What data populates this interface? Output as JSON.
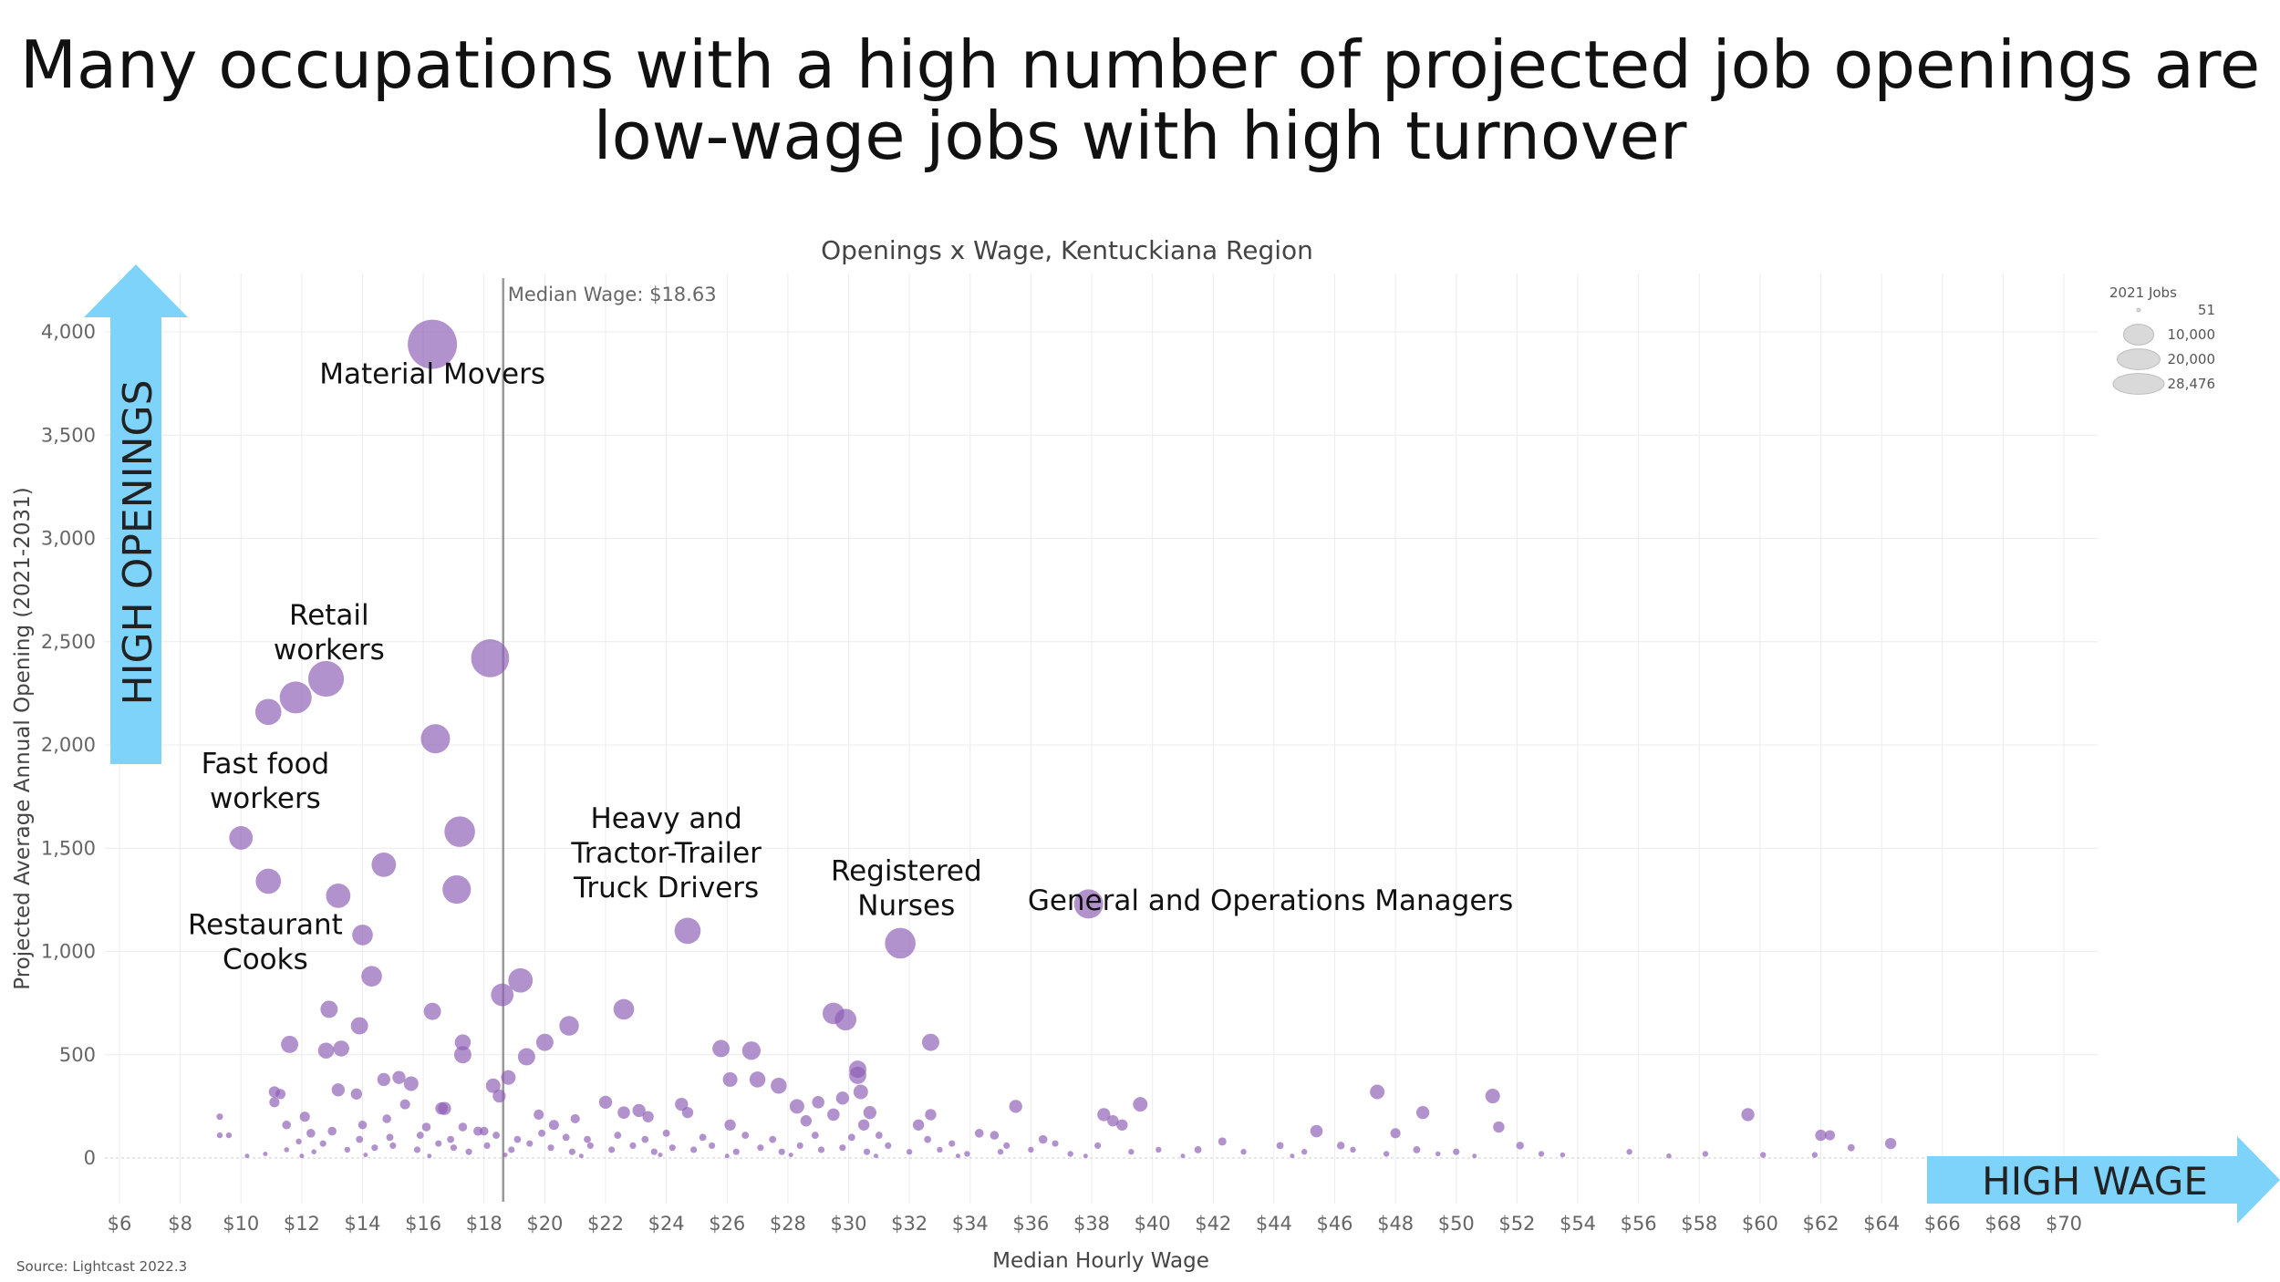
{
  "title_lines": [
    "Many occupations with a high number of projected job openings are",
    "low-wage jobs with high turnover"
  ],
  "source": "Source: Lightcast 2022.3",
  "arrows": {
    "y_label": "HIGH OPENINGS",
    "x_label": "HIGH WAGE",
    "color": "#7ed3fb"
  },
  "colors": {
    "point": "#8e5fb5",
    "median_line": "#999999",
    "grid": "#ececec",
    "legend_circle": "#d9d9d9"
  },
  "legend": {
    "title": "2021 Jobs",
    "entries": [
      {
        "label": "51",
        "value": 51
      },
      {
        "label": "10,000",
        "value": 10000
      },
      {
        "label": "20,000",
        "value": 20000
      },
      {
        "label": "28,476",
        "value": 28476
      }
    ]
  },
  "chart_data": {
    "type": "scatter",
    "title": "Openings x Wage, Kentuckiana Region",
    "xlabel": "Median Hourly Wage",
    "ylabel": "Projected Average Annual Opening (2021-2031)",
    "xlim": [
      6,
      70
    ],
    "ylim": [
      -150,
      4200
    ],
    "x_ticks": [
      6,
      8,
      10,
      12,
      14,
      16,
      18,
      20,
      22,
      24,
      26,
      28,
      30,
      32,
      34,
      36,
      38,
      40,
      42,
      44,
      46,
      48,
      50,
      52,
      54,
      56,
      58,
      60,
      62,
      64,
      66,
      68,
      70
    ],
    "x_tick_labels": [
      "$6",
      "$8",
      "$10",
      "$12",
      "$14",
      "$16",
      "$18",
      "$20",
      "$22",
      "$24",
      "$26",
      "$28",
      "$30",
      "$32",
      "$34",
      "$36",
      "$38",
      "$40",
      "$42",
      "$44",
      "$46",
      "$48",
      "$50",
      "$52",
      "$54",
      "$56",
      "$58",
      "$60",
      "$62",
      "$64",
      "$66",
      "$68",
      "$70"
    ],
    "y_ticks": [
      0,
      500,
      1000,
      1500,
      2000,
      2500,
      3000,
      3500,
      4000
    ],
    "y_tick_labels": [
      "0",
      "500",
      "1,000",
      "1,500",
      "2,000",
      "2,500",
      "3,000",
      "3,500",
      "4,000"
    ],
    "size_legend": "2021 Jobs",
    "median_wage": {
      "value": 18.63,
      "label": "Median Wage: $18.63"
    },
    "grid": true,
    "legend_position": "top-right",
    "annotations": [
      {
        "lines": [
          "Material Movers"
        ],
        "x": 16.3,
        "y": 3750
      },
      {
        "lines": [
          "Retail",
          "workers"
        ],
        "x": 12.9,
        "y": 2500
      },
      {
        "lines": [
          "Fast food",
          "workers"
        ],
        "x": 10.8,
        "y": 1780
      },
      {
        "lines": [
          "Restaurant",
          "Cooks"
        ],
        "x": 10.8,
        "y": 1000
      },
      {
        "lines": [
          "Heavy and",
          "Tractor-Trailer",
          "Truck Drivers"
        ],
        "x": 24.0,
        "y": 1430
      },
      {
        "lines": [
          "Registered",
          "Nurses"
        ],
        "x": 31.9,
        "y": 1260
      },
      {
        "lines": [
          "General and Operations Managers"
        ],
        "x": 47.0,
        "y": 1200
      }
    ],
    "points": [
      {
        "x": 16.3,
        "y": 3940,
        "size": 28476
      },
      {
        "x": 18.2,
        "y": 2420,
        "size": 17000
      },
      {
        "x": 12.8,
        "y": 2320,
        "size": 15000
      },
      {
        "x": 11.8,
        "y": 2230,
        "size": 12000
      },
      {
        "x": 10.9,
        "y": 2160,
        "size": 8000
      },
      {
        "x": 16.4,
        "y": 2030,
        "size": 10000
      },
      {
        "x": 10.0,
        "y": 1550,
        "size": 6500
      },
      {
        "x": 17.2,
        "y": 1580,
        "size": 11000
      },
      {
        "x": 10.9,
        "y": 1340,
        "size": 7500
      },
      {
        "x": 17.1,
        "y": 1300,
        "size": 9500
      },
      {
        "x": 13.2,
        "y": 1270,
        "size": 7000
      },
      {
        "x": 14.7,
        "y": 1420,
        "size": 7000
      },
      {
        "x": 14.0,
        "y": 1080,
        "size": 5000
      },
      {
        "x": 14.3,
        "y": 880,
        "size": 5000
      },
      {
        "x": 24.7,
        "y": 1100,
        "size": 8000
      },
      {
        "x": 31.7,
        "y": 1040,
        "size": 11000
      },
      {
        "x": 37.9,
        "y": 1230,
        "size": 10000
      },
      {
        "x": 19.2,
        "y": 860,
        "size": 7000
      },
      {
        "x": 18.6,
        "y": 790,
        "size": 6000
      },
      {
        "x": 12.9,
        "y": 720,
        "size": 3500
      },
      {
        "x": 16.3,
        "y": 710,
        "size": 3500
      },
      {
        "x": 22.6,
        "y": 720,
        "size": 5000
      },
      {
        "x": 20.8,
        "y": 640,
        "size": 4500
      },
      {
        "x": 29.5,
        "y": 700,
        "size": 5500
      },
      {
        "x": 29.9,
        "y": 670,
        "size": 5500
      },
      {
        "x": 13.9,
        "y": 640,
        "size": 3500
      },
      {
        "x": 11.6,
        "y": 550,
        "size": 3500
      },
      {
        "x": 12.8,
        "y": 520,
        "size": 3000
      },
      {
        "x": 13.3,
        "y": 530,
        "size": 3000
      },
      {
        "x": 17.3,
        "y": 560,
        "size": 3000
      },
      {
        "x": 17.3,
        "y": 500,
        "size": 3500
      },
      {
        "x": 20.0,
        "y": 560,
        "size": 3500
      },
      {
        "x": 19.4,
        "y": 490,
        "size": 3500
      },
      {
        "x": 25.8,
        "y": 530,
        "size": 3500
      },
      {
        "x": 26.8,
        "y": 520,
        "size": 4000
      },
      {
        "x": 32.7,
        "y": 560,
        "size": 3500
      },
      {
        "x": 30.3,
        "y": 430,
        "size": 3500
      },
      {
        "x": 30.3,
        "y": 400,
        "size": 3500
      },
      {
        "x": 18.8,
        "y": 390,
        "size": 2500
      },
      {
        "x": 18.3,
        "y": 350,
        "size": 2500
      },
      {
        "x": 15.6,
        "y": 360,
        "size": 2500
      },
      {
        "x": 15.2,
        "y": 390,
        "size": 2000
      },
      {
        "x": 14.7,
        "y": 380,
        "size": 2000
      },
      {
        "x": 26.1,
        "y": 380,
        "size": 2500
      },
      {
        "x": 27.0,
        "y": 380,
        "size": 3000
      },
      {
        "x": 27.7,
        "y": 350,
        "size": 3000
      },
      {
        "x": 30.4,
        "y": 320,
        "size": 2500
      },
      {
        "x": 29.8,
        "y": 290,
        "size": 2000
      },
      {
        "x": 28.3,
        "y": 250,
        "size": 2500
      },
      {
        "x": 13.2,
        "y": 330,
        "size": 2000
      },
      {
        "x": 13.8,
        "y": 310,
        "size": 1500
      },
      {
        "x": 11.1,
        "y": 320,
        "size": 1500
      },
      {
        "x": 11.3,
        "y": 310,
        "size": 1200
      },
      {
        "x": 11.1,
        "y": 270,
        "size": 1200
      },
      {
        "x": 18.5,
        "y": 300,
        "size": 2000
      },
      {
        "x": 22.0,
        "y": 270,
        "size": 2000
      },
      {
        "x": 22.6,
        "y": 220,
        "size": 1800
      },
      {
        "x": 23.1,
        "y": 230,
        "size": 2000
      },
      {
        "x": 24.5,
        "y": 260,
        "size": 2000
      },
      {
        "x": 23.4,
        "y": 200,
        "size": 1500
      },
      {
        "x": 24.7,
        "y": 220,
        "size": 1500
      },
      {
        "x": 26.1,
        "y": 160,
        "size": 1500
      },
      {
        "x": 28.6,
        "y": 180,
        "size": 1500
      },
      {
        "x": 29.0,
        "y": 270,
        "size": 1800
      },
      {
        "x": 29.5,
        "y": 210,
        "size": 1800
      },
      {
        "x": 30.7,
        "y": 220,
        "size": 2000
      },
      {
        "x": 30.5,
        "y": 160,
        "size": 1500
      },
      {
        "x": 32.3,
        "y": 160,
        "size": 1500
      },
      {
        "x": 32.7,
        "y": 210,
        "size": 1500
      },
      {
        "x": 35.5,
        "y": 250,
        "size": 2000
      },
      {
        "x": 38.4,
        "y": 210,
        "size": 2000
      },
      {
        "x": 38.7,
        "y": 180,
        "size": 1500
      },
      {
        "x": 39.6,
        "y": 260,
        "size": 2500
      },
      {
        "x": 39.0,
        "y": 160,
        "size": 1500
      },
      {
        "x": 47.4,
        "y": 320,
        "size": 2500
      },
      {
        "x": 48.9,
        "y": 220,
        "size": 2000
      },
      {
        "x": 51.2,
        "y": 300,
        "size": 2500
      },
      {
        "x": 59.6,
        "y": 210,
        "size": 2000
      },
      {
        "x": 45.4,
        "y": 130,
        "size": 1800
      },
      {
        "x": 51.4,
        "y": 150,
        "size": 1500
      },
      {
        "x": 62.0,
        "y": 110,
        "size": 1500
      },
      {
        "x": 64.3,
        "y": 70,
        "size": 1500
      },
      {
        "x": 48.0,
        "y": 120,
        "size": 1200
      },
      {
        "x": 16.7,
        "y": 240,
        "size": 2000
      },
      {
        "x": 16.6,
        "y": 240,
        "size": 1800
      },
      {
        "x": 12.1,
        "y": 200,
        "size": 1200
      },
      {
        "x": 15.4,
        "y": 260,
        "size": 1200
      },
      {
        "x": 19.8,
        "y": 210,
        "size": 1200
      },
      {
        "x": 20.3,
        "y": 160,
        "size": 1200
      },
      {
        "x": 21.0,
        "y": 190,
        "size": 1000
      },
      {
        "x": 17.8,
        "y": 130,
        "size": 1000
      },
      {
        "x": 18.0,
        "y": 130,
        "size": 900
      },
      {
        "x": 17.3,
        "y": 150,
        "size": 900
      },
      {
        "x": 16.1,
        "y": 150,
        "size": 900
      },
      {
        "x": 14.0,
        "y": 160,
        "size": 900
      },
      {
        "x": 14.8,
        "y": 190,
        "size": 900
      },
      {
        "x": 11.5,
        "y": 160,
        "size": 900
      },
      {
        "x": 12.3,
        "y": 120,
        "size": 900
      },
      {
        "x": 13.0,
        "y": 130,
        "size": 900
      },
      {
        "x": 9.3,
        "y": 200,
        "size": 500
      },
      {
        "x": 9.3,
        "y": 110,
        "size": 400
      },
      {
        "x": 9.6,
        "y": 110,
        "size": 400
      },
      {
        "x": 34.8,
        "y": 110,
        "size": 900
      },
      {
        "x": 36.4,
        "y": 90,
        "size": 900
      },
      {
        "x": 34.3,
        "y": 120,
        "size": 900
      },
      {
        "x": 42.3,
        "y": 80,
        "size": 800
      },
      {
        "x": 41.5,
        "y": 40,
        "size": 600
      },
      {
        "x": 44.2,
        "y": 60,
        "size": 600
      },
      {
        "x": 46.2,
        "y": 60,
        "size": 700
      },
      {
        "x": 48.7,
        "y": 40,
        "size": 600
      },
      {
        "x": 50.0,
        "y": 30,
        "size": 500
      },
      {
        "x": 52.1,
        "y": 60,
        "size": 700
      },
      {
        "x": 52.8,
        "y": 20,
        "size": 400
      },
      {
        "x": 55.7,
        "y": 30,
        "size": 400
      },
      {
        "x": 58.2,
        "y": 20,
        "size": 400
      },
      {
        "x": 60.1,
        "y": 15,
        "size": 400
      },
      {
        "x": 61.8,
        "y": 15,
        "size": 400
      },
      {
        "x": 62.3,
        "y": 110,
        "size": 1200
      },
      {
        "x": 63.0,
        "y": 50,
        "size": 600
      },
      {
        "x": 53.5,
        "y": 15,
        "size": 300
      },
      {
        "x": 57.0,
        "y": 10,
        "size": 300
      },
      {
        "x": 10.8,
        "y": 20,
        "size": 200
      },
      {
        "x": 11.5,
        "y": 40,
        "size": 300
      },
      {
        "x": 12.4,
        "y": 30,
        "size": 300
      },
      {
        "x": 13.5,
        "y": 40,
        "size": 400
      },
      {
        "x": 14.4,
        "y": 50,
        "size": 500
      },
      {
        "x": 15.0,
        "y": 60,
        "size": 500
      },
      {
        "x": 15.8,
        "y": 40,
        "size": 500
      },
      {
        "x": 16.5,
        "y": 70,
        "size": 500
      },
      {
        "x": 17.0,
        "y": 50,
        "size": 500
      },
      {
        "x": 17.5,
        "y": 30,
        "size": 500
      },
      {
        "x": 18.1,
        "y": 60,
        "size": 500
      },
      {
        "x": 18.9,
        "y": 40,
        "size": 500
      },
      {
        "x": 19.5,
        "y": 70,
        "size": 500
      },
      {
        "x": 20.2,
        "y": 50,
        "size": 500
      },
      {
        "x": 20.9,
        "y": 30,
        "size": 500
      },
      {
        "x": 21.5,
        "y": 60,
        "size": 500
      },
      {
        "x": 22.2,
        "y": 40,
        "size": 500
      },
      {
        "x": 22.9,
        "y": 60,
        "size": 500
      },
      {
        "x": 23.6,
        "y": 30,
        "size": 500
      },
      {
        "x": 24.2,
        "y": 50,
        "size": 500
      },
      {
        "x": 24.9,
        "y": 40,
        "size": 500
      },
      {
        "x": 25.5,
        "y": 60,
        "size": 500
      },
      {
        "x": 26.3,
        "y": 30,
        "size": 500
      },
      {
        "x": 27.1,
        "y": 50,
        "size": 500
      },
      {
        "x": 27.8,
        "y": 30,
        "size": 500
      },
      {
        "x": 28.4,
        "y": 60,
        "size": 500
      },
      {
        "x": 29.1,
        "y": 40,
        "size": 500
      },
      {
        "x": 29.8,
        "y": 50,
        "size": 500
      },
      {
        "x": 30.6,
        "y": 30,
        "size": 500
      },
      {
        "x": 31.3,
        "y": 60,
        "size": 500
      },
      {
        "x": 32.0,
        "y": 30,
        "size": 400
      },
      {
        "x": 33.0,
        "y": 40,
        "size": 400
      },
      {
        "x": 33.9,
        "y": 20,
        "size": 400
      },
      {
        "x": 35.0,
        "y": 30,
        "size": 400
      },
      {
        "x": 36.0,
        "y": 40,
        "size": 400
      },
      {
        "x": 37.3,
        "y": 20,
        "size": 400
      },
      {
        "x": 38.2,
        "y": 60,
        "size": 500
      },
      {
        "x": 39.3,
        "y": 30,
        "size": 400
      },
      {
        "x": 40.2,
        "y": 40,
        "size": 400
      },
      {
        "x": 43.0,
        "y": 30,
        "size": 400
      },
      {
        "x": 45.0,
        "y": 30,
        "size": 400
      },
      {
        "x": 46.6,
        "y": 40,
        "size": 400
      },
      {
        "x": 47.7,
        "y": 20,
        "size": 400
      },
      {
        "x": 49.4,
        "y": 20,
        "size": 300
      },
      {
        "x": 10.2,
        "y": 10,
        "size": 150
      },
      {
        "x": 11.9,
        "y": 80,
        "size": 400
      },
      {
        "x": 12.7,
        "y": 70,
        "size": 500
      },
      {
        "x": 13.9,
        "y": 90,
        "size": 600
      },
      {
        "x": 14.9,
        "y": 100,
        "size": 600
      },
      {
        "x": 15.9,
        "y": 110,
        "size": 600
      },
      {
        "x": 16.9,
        "y": 90,
        "size": 600
      },
      {
        "x": 18.4,
        "y": 110,
        "size": 600
      },
      {
        "x": 19.1,
        "y": 90,
        "size": 600
      },
      {
        "x": 19.9,
        "y": 120,
        "size": 600
      },
      {
        "x": 20.7,
        "y": 100,
        "size": 600
      },
      {
        "x": 21.4,
        "y": 90,
        "size": 600
      },
      {
        "x": 22.4,
        "y": 110,
        "size": 600
      },
      {
        "x": 23.3,
        "y": 90,
        "size": 600
      },
      {
        "x": 24.0,
        "y": 120,
        "size": 600
      },
      {
        "x": 25.2,
        "y": 100,
        "size": 600
      },
      {
        "x": 26.6,
        "y": 110,
        "size": 600
      },
      {
        "x": 27.5,
        "y": 90,
        "size": 600
      },
      {
        "x": 28.9,
        "y": 110,
        "size": 600
      },
      {
        "x": 30.1,
        "y": 100,
        "size": 600
      },
      {
        "x": 31.0,
        "y": 110,
        "size": 600
      },
      {
        "x": 32.6,
        "y": 90,
        "size": 600
      },
      {
        "x": 33.4,
        "y": 70,
        "size": 500
      },
      {
        "x": 35.2,
        "y": 60,
        "size": 500
      },
      {
        "x": 36.8,
        "y": 70,
        "size": 500
      },
      {
        "x": 12.0,
        "y": 10,
        "size": 200
      },
      {
        "x": 14.1,
        "y": 15,
        "size": 200
      },
      {
        "x": 16.2,
        "y": 10,
        "size": 200
      },
      {
        "x": 18.7,
        "y": 15,
        "size": 200
      },
      {
        "x": 21.2,
        "y": 10,
        "size": 200
      },
      {
        "x": 23.8,
        "y": 15,
        "size": 200
      },
      {
        "x": 26.0,
        "y": 10,
        "size": 200
      },
      {
        "x": 28.1,
        "y": 15,
        "size": 200
      },
      {
        "x": 30.9,
        "y": 10,
        "size": 200
      },
      {
        "x": 33.6,
        "y": 10,
        "size": 200
      },
      {
        "x": 37.8,
        "y": 10,
        "size": 200
      },
      {
        "x": 41.0,
        "y": 10,
        "size": 200
      },
      {
        "x": 44.6,
        "y": 10,
        "size": 200
      },
      {
        "x": 50.6,
        "y": 10,
        "size": 200
      }
    ]
  }
}
